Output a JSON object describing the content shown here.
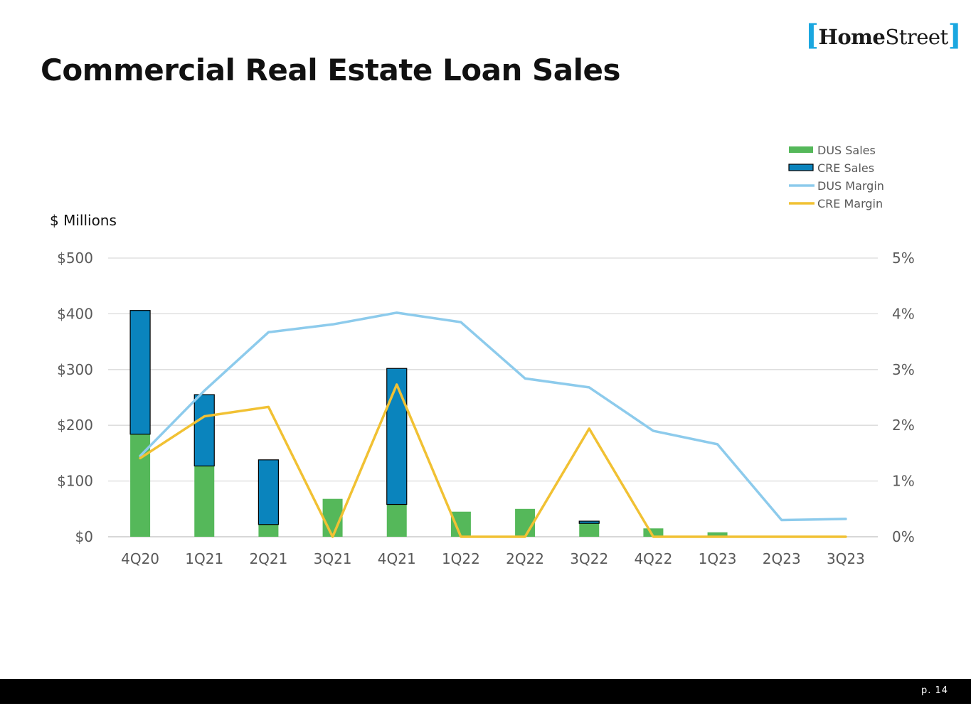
{
  "logo": {
    "brand_bold": "Home",
    "brand_regular": "Street",
    "bracket_open": "[",
    "bracket_close": "]"
  },
  "page_title": "Commercial Real Estate Loan Sales",
  "footer": {
    "page_number": "p. 14"
  },
  "colors": {
    "dus_sales": "#55b85a",
    "cre_sales": "#0a84bd",
    "dus_margin": "#8dcbec",
    "cre_margin": "#f1c133",
    "footer_bar": "#000000",
    "logo_bracket": "#1aa7e0"
  },
  "chart_data": {
    "type": "bar",
    "units_label": "$ Millions",
    "categories": [
      "4Q20",
      "1Q21",
      "2Q21",
      "3Q21",
      "4Q21",
      "1Q22",
      "2Q22",
      "3Q22",
      "4Q22",
      "1Q23",
      "2Q23",
      "3Q23"
    ],
    "y_left": {
      "range": [
        0,
        500
      ],
      "ticks": [
        0,
        100,
        200,
        300,
        400,
        500
      ],
      "tick_labels": [
        "$0",
        "$100",
        "$200",
        "$300",
        "$400",
        "$500"
      ]
    },
    "y_right": {
      "range": [
        0,
        5
      ],
      "ticks": [
        0,
        1,
        2,
        3,
        4,
        5
      ],
      "tick_labels": [
        "0%",
        "1%",
        "2%",
        "3%",
        "4%",
        "5%"
      ]
    },
    "grid": true,
    "legend_position": "top-right",
    "series": [
      {
        "name": "DUS Sales",
        "kind": "bar",
        "stack": "sales",
        "axis": "left",
        "values": [
          184,
          127,
          22,
          68,
          58,
          45,
          50,
          24,
          15,
          8,
          0,
          0
        ]
      },
      {
        "name": "CRE Sales",
        "kind": "bar",
        "stack": "sales",
        "axis": "left",
        "values": [
          222,
          128,
          116,
          0,
          244,
          0,
          0,
          4,
          0,
          0,
          0,
          0
        ]
      },
      {
        "name": "DUS Margin",
        "kind": "line",
        "axis": "right",
        "values": [
          1.45,
          2.62,
          3.67,
          3.81,
          4.02,
          3.85,
          2.84,
          2.68,
          1.9,
          1.66,
          0.3,
          0.32
        ]
      },
      {
        "name": "CRE Margin",
        "kind": "line",
        "axis": "right",
        "values": [
          1.41,
          2.16,
          2.33,
          0.0,
          2.73,
          0.0,
          0.0,
          1.94,
          0.0,
          0.0,
          0.0,
          0.0
        ]
      }
    ]
  }
}
